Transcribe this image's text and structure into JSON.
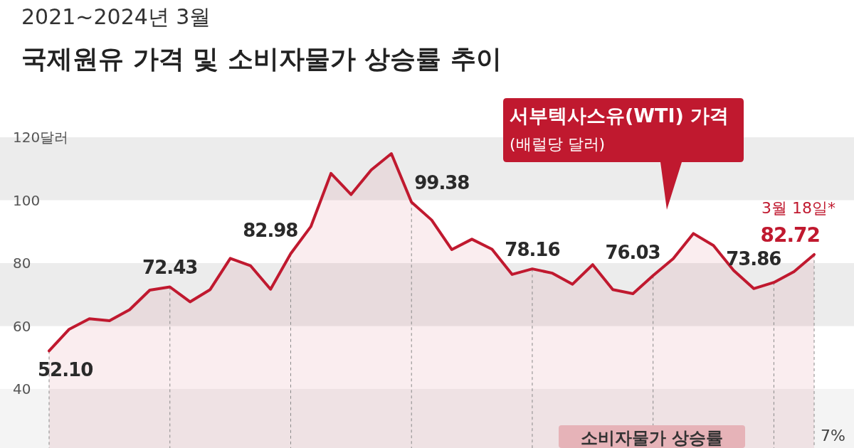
{
  "chart_data": {
    "type": "area",
    "title": "국제원유 가격 및 소비자물가 상승률 추이",
    "subtitle": "2021~2024년 3월",
    "ylabel": "(배럴당 달러)",
    "categories": [
      null,
      null,
      null,
      null,
      null,
      null,
      null,
      null,
      null,
      null,
      null,
      null,
      null,
      null,
      null,
      null,
      null,
      null,
      null,
      null,
      null,
      null,
      null,
      null,
      null,
      null,
      null,
      null,
      null,
      null,
      null,
      null,
      null,
      null,
      null,
      null,
      null,
      null,
      null
    ],
    "series": [
      {
        "name": "서부텍사스유(WTI) 가격",
        "color": "#c0192f",
        "values": [
          52.1,
          59.0,
          62.3,
          61.7,
          65.2,
          71.4,
          72.43,
          67.7,
          71.6,
          81.5,
          79.2,
          71.7,
          82.98,
          91.6,
          108.5,
          101.8,
          109.6,
          114.8,
          99.38,
          93.7,
          84.3,
          87.6,
          84.4,
          76.4,
          78.16,
          76.8,
          73.3,
          79.5,
          71.6,
          70.3,
          76.03,
          81.4,
          89.4,
          85.6,
          77.7,
          71.9,
          73.86,
          77.3,
          82.72
        ],
        "value_labels": [
          "52.10",
          null,
          null,
          null,
          null,
          null,
          "72.43",
          null,
          null,
          null,
          null,
          null,
          "82.98",
          null,
          null,
          null,
          null,
          null,
          "99.38",
          null,
          null,
          null,
          null,
          null,
          "78.16",
          null,
          null,
          null,
          null,
          null,
          "76.03",
          null,
          null,
          null,
          null,
          null,
          "73.86",
          null,
          "82.72"
        ]
      }
    ],
    "ylim": [
      40,
      120
    ],
    "yticks": [
      40,
      60,
      80,
      100,
      {
        "value": 120,
        "label": "120달러"
      }
    ],
    "bands": [
      {
        "axis": "y",
        "from": 100,
        "to": 120,
        "color": "#ececec"
      },
      {
        "axis": "y",
        "from": 60,
        "to": 80,
        "color": "#ececec"
      }
    ],
    "grid": "x",
    "annotations": [
      "소비자물가 상승률",
      "7%",
      "3월 18일*"
    ]
  }
}
